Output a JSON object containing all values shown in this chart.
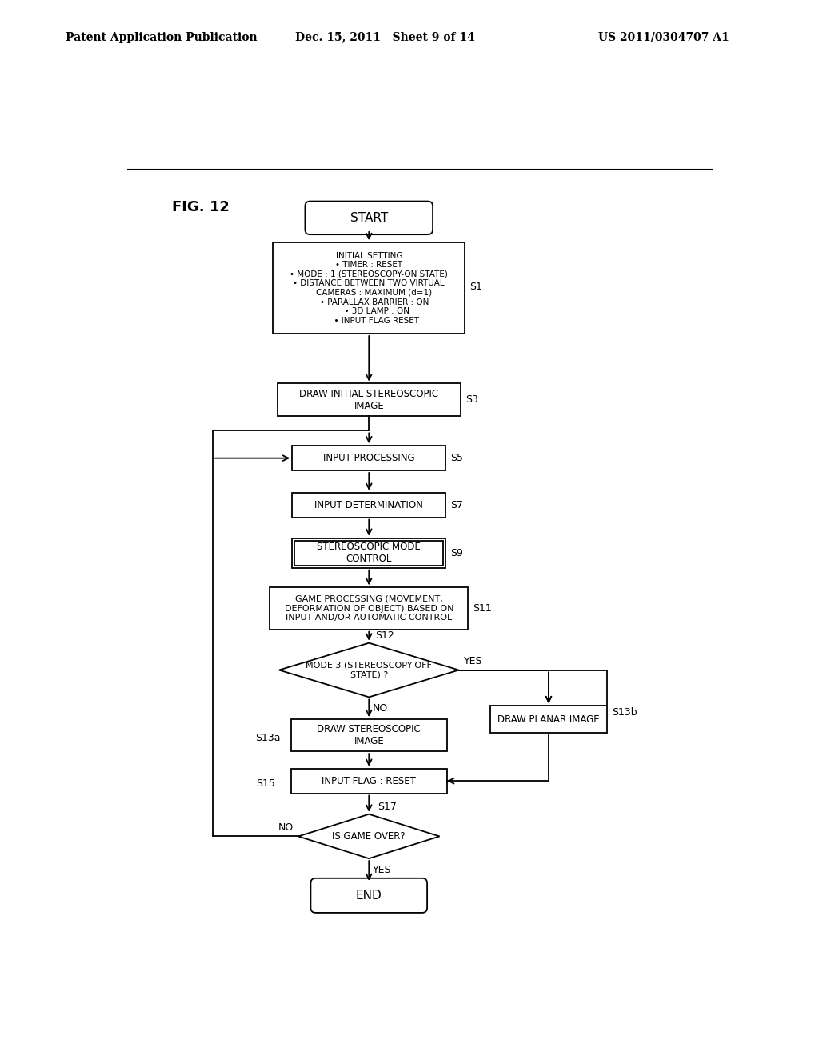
{
  "title_left": "Patent Application Publication",
  "title_center": "Dec. 15, 2011   Sheet 9 of 14",
  "title_right": "US 2011/0304707 A1",
  "fig_label": "FIG. 12",
  "background": "#ffffff"
}
